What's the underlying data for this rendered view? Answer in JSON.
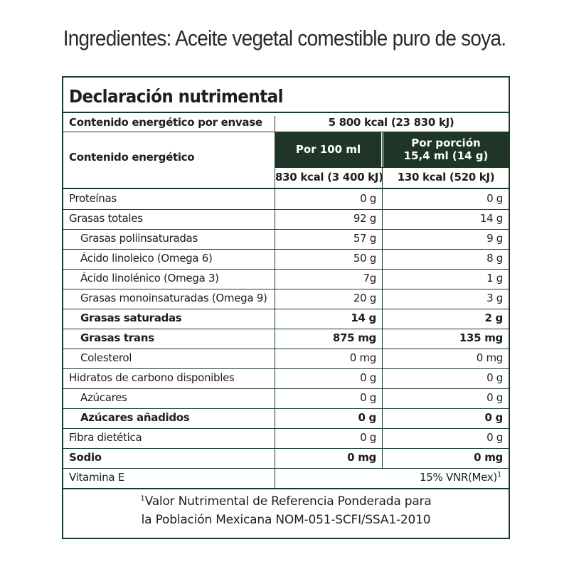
{
  "ingredients": "Ingredientes: Aceite vegetal comestible puro de soya.",
  "panel": {
    "title": "Declaración nutrimental",
    "energy_per_container_label": "Contenido energético por envase",
    "energy_per_container_value": "5 800 kcal (23 830 kJ)",
    "energy_label": "Contenido energético",
    "col_100ml_header": "Por 100 ml",
    "col_portion_header_line1": "Por porción",
    "col_portion_header_line2": "15,4 ml (14 g)",
    "energy_100ml": "830 kcal (3 400 kJ)",
    "energy_portion": "130 kcal (520 kJ)",
    "rows": [
      {
        "label": "Proteínas",
        "per100": "0 g",
        "portion": "0 g",
        "indent": false,
        "bold": false
      },
      {
        "label": "Grasas totales",
        "per100": "92 g",
        "portion": "14 g",
        "indent": false,
        "bold": false
      },
      {
        "label": "Grasas poliinsaturadas",
        "per100": "57 g",
        "portion": "9 g",
        "indent": true,
        "bold": false
      },
      {
        "label": "Ácido linoleico (Omega 6)",
        "per100": "50 g",
        "portion": "8 g",
        "indent": true,
        "bold": false
      },
      {
        "label": "Ácido linolénico (Omega 3)",
        "per100": "7g",
        "portion": "1 g",
        "indent": true,
        "bold": false
      },
      {
        "label": "Grasas monoinsaturadas (Omega 9)",
        "per100": "20 g",
        "portion": "3 g",
        "indent": true,
        "bold": false
      },
      {
        "label": "Grasas saturadas",
        "per100": "14 g",
        "portion": "2 g",
        "indent": true,
        "bold": true
      },
      {
        "label": "Grasas trans",
        "per100": "875 mg",
        "portion": "135 mg",
        "indent": true,
        "bold": true
      },
      {
        "label": "Colesterol",
        "per100": "0 mg",
        "portion": "0 mg",
        "indent": true,
        "bold": false
      },
      {
        "label": "Hidratos de carbono disponibles",
        "per100": "0 g",
        "portion": "0 g",
        "indent": false,
        "bold": false
      },
      {
        "label": "Azúcares",
        "per100": "0 g",
        "portion": "0 g",
        "indent": true,
        "bold": false
      },
      {
        "label": "Azúcares añadidos",
        "per100": "0 g",
        "portion": "0 g",
        "indent": true,
        "bold": true
      },
      {
        "label": "Fibra dietética",
        "per100": "0 g",
        "portion": "0 g",
        "indent": false,
        "bold": false
      },
      {
        "label": "Sodio",
        "per100": "0 mg",
        "portion": "0 mg",
        "indent": false,
        "bold": true
      }
    ],
    "vitamin_label": "Vitamina E",
    "vitamin_value": "15% VNR(Mex)",
    "vitamin_sup": "1",
    "footnote_sup": "1",
    "footnote_line1": "Valor Nutrimental de Referencia Ponderada para",
    "footnote_line2": "la Población Mexicana NOM-051-SCFI/SSA1-2010",
    "colors": {
      "border": "#1c3a2b",
      "header_fill": "#1f3528"
    }
  }
}
